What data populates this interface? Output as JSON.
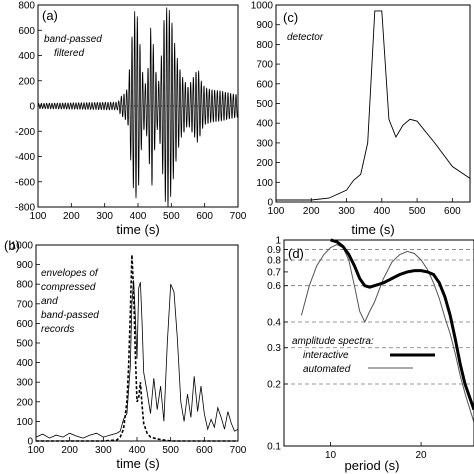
{
  "chart_data": [
    {
      "id": "a",
      "type": "line",
      "panel_label": "(a)",
      "annotation": [
        "band-passed",
        "filtered"
      ],
      "xlabel": "time (s)",
      "ylabel": "",
      "xlim": [
        100,
        700
      ],
      "ylim": [
        -800,
        800
      ],
      "xticks": [
        100,
        200,
        300,
        400,
        500,
        600,
        700
      ],
      "yticks": [
        -800,
        -600,
        -400,
        -200,
        0,
        200,
        400,
        600,
        800
      ],
      "zero_line": true,
      "envelope_points": [
        [
          100,
          20
        ],
        [
          340,
          30
        ],
        [
          350,
          80
        ],
        [
          360,
          100
        ],
        [
          370,
          150
        ],
        [
          380,
          500
        ],
        [
          390,
          750
        ],
        [
          400,
          700
        ],
        [
          410,
          350
        ],
        [
          420,
          150
        ],
        [
          430,
          300
        ],
        [
          440,
          700
        ],
        [
          450,
          350
        ],
        [
          460,
          150
        ],
        [
          470,
          400
        ],
        [
          480,
          750
        ],
        [
          490,
          800
        ],
        [
          500,
          700
        ],
        [
          510,
          500
        ],
        [
          520,
          350
        ],
        [
          530,
          250
        ],
        [
          540,
          200
        ],
        [
          550,
          150
        ],
        [
          560,
          200
        ],
        [
          570,
          250
        ],
        [
          580,
          300
        ],
        [
          590,
          200
        ],
        [
          600,
          150
        ],
        [
          620,
          130
        ],
        [
          650,
          120
        ],
        [
          680,
          100
        ],
        [
          700,
          90
        ]
      ],
      "oscillation_period_s": 8
    },
    {
      "id": "c",
      "type": "line",
      "panel_label": "(c)",
      "annotation": [
        "detector"
      ],
      "xlabel": "time (s)",
      "ylabel": "",
      "xlim": [
        100,
        650
      ],
      "ylim": [
        0,
        1000
      ],
      "xticks": [
        100,
        200,
        300,
        400,
        500,
        600
      ],
      "xtick_labels": [
        "100",
        "200",
        "300",
        "400",
        "500",
        "600"
      ],
      "yticks": [
        0,
        100,
        200,
        300,
        400,
        500,
        600,
        700,
        800,
        900,
        1000
      ],
      "series": [
        {
          "x": [
            100,
            200,
            250,
            300,
            320,
            340,
            360,
            380,
            390,
            400,
            410,
            420,
            440,
            460,
            480,
            500,
            550,
            600,
            650
          ],
          "y": [
            10,
            10,
            20,
            60,
            110,
            140,
            300,
            970,
            970,
            970,
            700,
            420,
            330,
            390,
            420,
            410,
            300,
            180,
            120
          ]
        }
      ]
    },
    {
      "id": "b",
      "type": "line",
      "panel_label": "(b)",
      "annotation": [
        "envelopes of",
        "compressed",
        "and",
        "band-passed",
        "records"
      ],
      "xlabel": "time (s)",
      "ylabel": "",
      "xlim": [
        100,
        700
      ],
      "ylim": [
        0,
        1000
      ],
      "xticks": [
        100,
        200,
        300,
        400,
        500,
        600,
        700
      ],
      "yticks": [
        0,
        100,
        200,
        300,
        400,
        500,
        600,
        700,
        800,
        900,
        1000
      ],
      "series": [
        {
          "style": "solid",
          "x": [
            100,
            120,
            140,
            160,
            180,
            200,
            220,
            240,
            260,
            280,
            300,
            320,
            340,
            350,
            360,
            370,
            380,
            385,
            390,
            395,
            400,
            405,
            410,
            415,
            420,
            430,
            440,
            450,
            460,
            470,
            480,
            490,
            500,
            510,
            520,
            530,
            540,
            550,
            560,
            570,
            580,
            590,
            600,
            610,
            620,
            630,
            640,
            650,
            660,
            670,
            680,
            690,
            700
          ],
          "y": [
            20,
            35,
            15,
            30,
            20,
            40,
            25,
            15,
            30,
            40,
            20,
            30,
            40,
            50,
            110,
            140,
            380,
            700,
            820,
            640,
            420,
            780,
            810,
            600,
            350,
            250,
            140,
            320,
            160,
            280,
            100,
            500,
            800,
            760,
            520,
            200,
            100,
            240,
            120,
            330,
            150,
            280,
            140,
            60,
            110,
            70,
            170,
            120,
            60,
            150,
            90,
            50,
            60
          ]
        },
        {
          "style": "dashed",
          "x": [
            100,
            300,
            340,
            350,
            360,
            365,
            370,
            375,
            380,
            385,
            390,
            395,
            400,
            405,
            410,
            415,
            420,
            430,
            440,
            460,
            480,
            500,
            700
          ],
          "y": [
            0,
            0,
            5,
            20,
            60,
            130,
            200,
            380,
            650,
            950,
            770,
            450,
            200,
            220,
            300,
            180,
            90,
            40,
            20,
            10,
            5,
            0,
            0
          ]
        }
      ]
    },
    {
      "id": "d",
      "type": "line",
      "panel_label": "(d)",
      "annotation": [
        "amplitude spectra:"
      ],
      "xlabel": "period (s)",
      "ylabel": "",
      "xscale": "log",
      "yscale": "log",
      "xlim": [
        7,
        30
      ],
      "ylim": [
        0.1,
        1
      ],
      "xticks": [
        10,
        20
      ],
      "yticks": [
        0.1,
        0.2,
        0.3,
        0.4,
        0.6,
        0.7,
        0.8,
        0.9,
        1
      ],
      "ytick_labels": [
        "0.1",
        "0.2",
        "0.3",
        "0.4",
        "0.6",
        "0.7",
        "0.8",
        "0.9",
        "1"
      ],
      "dashed_gridlines_y": [
        0.2,
        0.3,
        0.4,
        0.6,
        0.8,
        0.9
      ],
      "legend_placement": "lower-left",
      "series": [
        {
          "name": "interactive",
          "width": "thick",
          "x": [
            10,
            10.5,
            11,
            11.5,
            12,
            12.5,
            13,
            13.5,
            14,
            15,
            16,
            17,
            18,
            19,
            20,
            21,
            22,
            23,
            24,
            25,
            26,
            27,
            28,
            30
          ],
          "y": [
            1,
            0.98,
            0.93,
            0.85,
            0.75,
            0.65,
            0.6,
            0.59,
            0.6,
            0.62,
            0.65,
            0.68,
            0.7,
            0.71,
            0.71,
            0.7,
            0.68,
            0.62,
            0.53,
            0.43,
            0.33,
            0.25,
            0.2,
            0.15
          ]
        },
        {
          "name": "automated",
          "width": "thin",
          "x": [
            8,
            8.5,
            9,
            9.5,
            10,
            10.5,
            11,
            11.5,
            12,
            12.5,
            13,
            13.5,
            14,
            15,
            16,
            17,
            18,
            19,
            20,
            21,
            22,
            23,
            24,
            25,
            26,
            27,
            28,
            30
          ],
          "y": [
            0.43,
            0.6,
            0.75,
            0.85,
            0.92,
            0.95,
            0.92,
            0.8,
            0.6,
            0.45,
            0.4,
            0.45,
            0.5,
            0.65,
            0.78,
            0.85,
            0.88,
            0.86,
            0.8,
            0.72,
            0.62,
            0.52,
            0.42,
            0.35,
            0.28,
            0.22,
            0.18,
            0.13
          ]
        }
      ]
    }
  ]
}
